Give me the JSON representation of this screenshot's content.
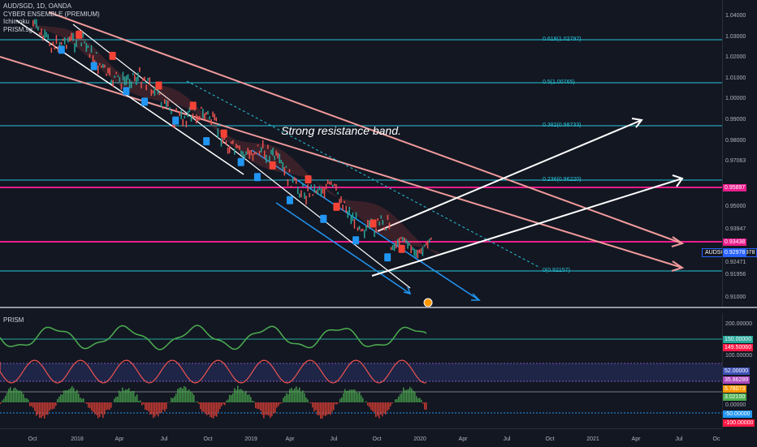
{
  "chart": {
    "symbol_line": "AUD/SGD, 1D, OANDA",
    "indicators": [
      "CYBER ENSEMBLE (PREMIUM)",
      "Ichimoku",
      "PRISM.sg"
    ],
    "annotation": "Strong resistance band.",
    "symbol_chip": "AUDSGD · 0.92978"
  },
  "price_axis": {
    "ticks": [
      "1.04000",
      "1.03000",
      "1.02000",
      "1.01000",
      "1.00000",
      "0.99000",
      "0.98000",
      "0.97063",
      "0.95000",
      "0.93947",
      "0.93438",
      "0.92978",
      "0.92471",
      "0.91956",
      "0.91000"
    ],
    "tags": [
      {
        "text": "0.95897",
        "bg": "#e91e8c",
        "fg": "#ffffff"
      },
      {
        "text": "0.93438",
        "bg": "#e91e8c",
        "fg": "#ffffff"
      },
      {
        "text": "0.92978",
        "bg": "#2962ff",
        "fg": "#ffffff"
      }
    ]
  },
  "fib_levels": [
    "0.618(1.02797)",
    "0.5(1.00765)",
    "0.382(0.98733)",
    "0.236(0.96220)",
    "0(0.92157)"
  ],
  "prism": {
    "title": "PRISM",
    "ticks": [
      "200.00000",
      "150.00000",
      "149.50060",
      "100.00000",
      "52.00000",
      "35.86289",
      "5.78073",
      "3.02100",
      "0.00000",
      "-50.00000",
      "-100.00000"
    ],
    "tag_colors": [
      "#131722",
      "#26a69a",
      "#ff1744",
      "#131722",
      "#3f51b5",
      "#ab47bc",
      "#ff9800",
      "#4caf50",
      "#131722",
      "#2196f3",
      "#ff1744"
    ]
  },
  "time_axis": [
    "Oct",
    "2018",
    "Apr",
    "Jul",
    "Oct",
    "2019",
    "Apr",
    "Jul",
    "Oct",
    "2020",
    "Apr",
    "Jul",
    "Oct",
    "2021",
    "Apr",
    "Jul",
    "Oc"
  ],
  "colors": {
    "fib": "#26c6da",
    "magenta": "#e91e8c",
    "salmon": "#ef9a9a",
    "signal_buy": "#2196f3",
    "signal_sell": "#f44336",
    "signal_doji": "#9e9e9e"
  }
}
